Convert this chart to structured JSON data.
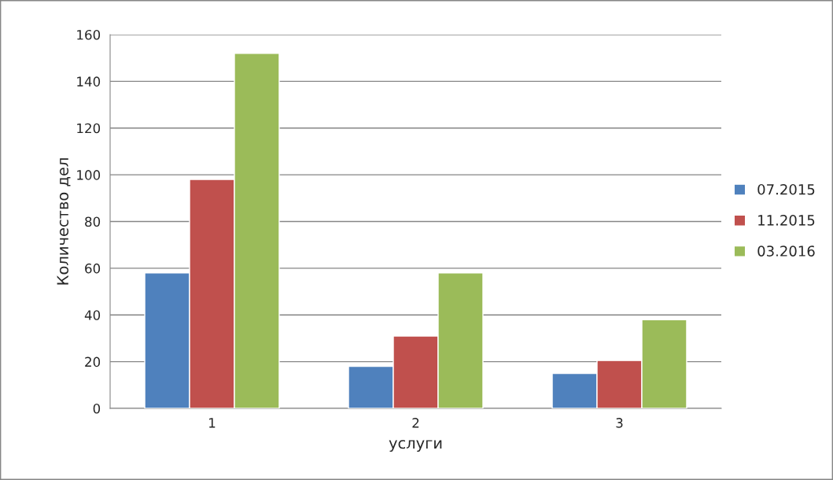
{
  "chart_data": {
    "type": "bar",
    "xlabel": "услуги",
    "ylabel": "Количество дел",
    "categories": [
      "1",
      "2",
      "3"
    ],
    "series": [
      {
        "name": "07.2015",
        "color": "#4f81bd",
        "values": [
          58,
          18,
          15
        ]
      },
      {
        "name": "11.2015",
        "color": "#c0504d",
        "values": [
          98,
          31,
          20.5
        ]
      },
      {
        "name": "03.2016",
        "color": "#9bbb59",
        "values": [
          152,
          58,
          38
        ]
      }
    ],
    "ylim": [
      0,
      160
    ],
    "yticks": [
      0,
      20,
      40,
      60,
      80,
      100,
      120,
      140,
      160
    ],
    "grid": "y",
    "legend": "right"
  }
}
